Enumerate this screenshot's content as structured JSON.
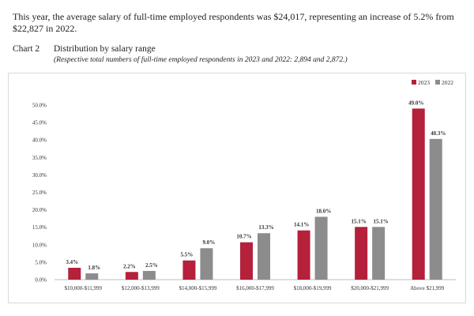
{
  "intro": {
    "text": "This year, the average salary of full-time employed respondents was $24,017, representing an increase of 5.2% from $22,827 in 2022."
  },
  "chart_heading": {
    "number": "Chart 2",
    "title": "Distribution by salary range",
    "subtitle": "(Respective total numbers of full-time employed respondents in 2023 and 2022: 2,894 and 2,872.)"
  },
  "colors": {
    "series_2023": "#b5203a",
    "series_2022": "#8c8c8c",
    "axis": "#bfbfbf",
    "panel_border": "#d8d8d8"
  },
  "chart_data": {
    "type": "bar",
    "title": "Distribution by salary range",
    "xlabel": "",
    "ylabel": "",
    "categories": [
      "$10,000-$11,999",
      "$12,000-$13,999",
      "$14,000-$15,999",
      "$16,000-$17,999",
      "$18,000-$19,999",
      "$20,000-$21,999",
      "Above $21,999"
    ],
    "series": [
      {
        "name": "2023",
        "values": [
          3.4,
          2.2,
          5.5,
          10.7,
          14.1,
          15.1,
          49.0
        ],
        "labels": [
          "3.4%",
          "2.2%",
          "5.5%",
          "10.7%",
          "14.1%",
          "15.1%",
          "49.0%"
        ]
      },
      {
        "name": "2022",
        "values": [
          1.8,
          2.5,
          9.0,
          13.3,
          18.0,
          15.1,
          40.3
        ],
        "labels": [
          "1.8%",
          "2.5%",
          "9.0%",
          "13.3%",
          "18.0%",
          "15.1%",
          "40.3%"
        ]
      }
    ],
    "ylim": [
      0,
      50
    ],
    "yticks": [
      0,
      5,
      10,
      15,
      20,
      25,
      30,
      35,
      40,
      45,
      50
    ],
    "ytick_labels": [
      "0.0%",
      "5.0%",
      "10.0%",
      "15.0%",
      "20.0%",
      "25.0%",
      "30.0%",
      "35.0%",
      "40.0%",
      "45.0%",
      "50.0%"
    ],
    "grid": false,
    "legend_position": "top-right"
  }
}
